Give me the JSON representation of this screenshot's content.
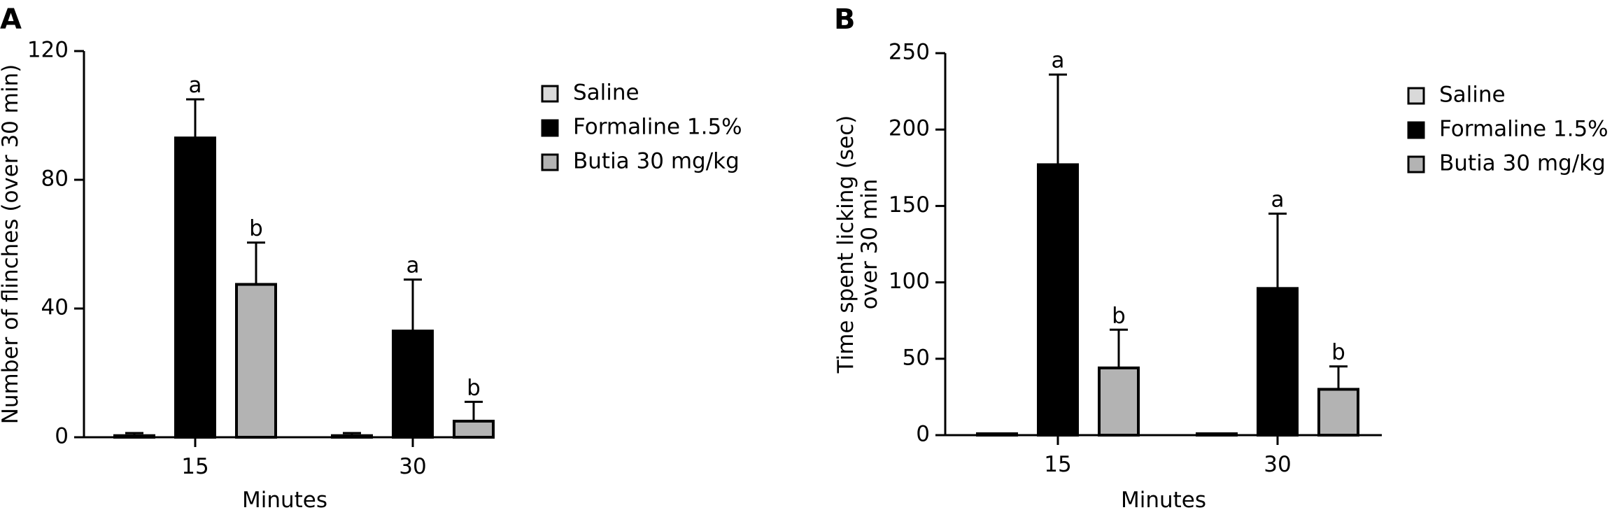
{
  "colors": {
    "saline": "#d9d9d9",
    "formaline": "#000000",
    "butia": "#b3b3b3",
    "stroke": "#000000"
  },
  "legend": [
    "Saline",
    "Formaline 1.5%",
    "Butia 30 mg/kg"
  ],
  "chart_data": [
    {
      "type": "bar",
      "panel": "A",
      "categories": [
        "15",
        "30"
      ],
      "xlabel": "Minutes",
      "ylabel": "Number of flinches (over 30 min)",
      "ylim": [
        0,
        120
      ],
      "yticks": [
        0,
        40,
        80,
        120
      ],
      "legend_position": "right",
      "series": [
        {
          "name": "Saline",
          "values": [
            0.5,
            0.5
          ],
          "errors": [
            0.8,
            0.8
          ],
          "labels": [
            "",
            ""
          ]
        },
        {
          "name": "Formaline 1.5%",
          "values": [
            93,
            33
          ],
          "errors": [
            12,
            16
          ],
          "labels": [
            "a",
            "a"
          ]
        },
        {
          "name": "Butia 30 mg/kg",
          "values": [
            47.5,
            5
          ],
          "errors": [
            13,
            6
          ],
          "labels": [
            "b",
            "b"
          ]
        }
      ]
    },
    {
      "type": "bar",
      "panel": "B",
      "categories": [
        "15",
        "30"
      ],
      "xlabel": "Minutes",
      "ylabel": "Time spent licking (sec) over 30 min",
      "ylim": [
        0,
        250
      ],
      "yticks": [
        0,
        50,
        100,
        150,
        200,
        250
      ],
      "legend_position": "right",
      "series": [
        {
          "name": "Saline",
          "values": [
            0.5,
            0.5
          ],
          "errors": [
            0.5,
            0.5
          ],
          "labels": [
            "",
            ""
          ]
        },
        {
          "name": "Formaline 1.5%",
          "values": [
            177,
            96
          ],
          "errors": [
            59,
            49
          ],
          "labels": [
            "a",
            "a"
          ]
        },
        {
          "name": "Butia 30 mg/kg",
          "values": [
            44,
            30
          ],
          "errors": [
            25,
            15
          ],
          "labels": [
            "b",
            "b"
          ]
        }
      ]
    }
  ]
}
